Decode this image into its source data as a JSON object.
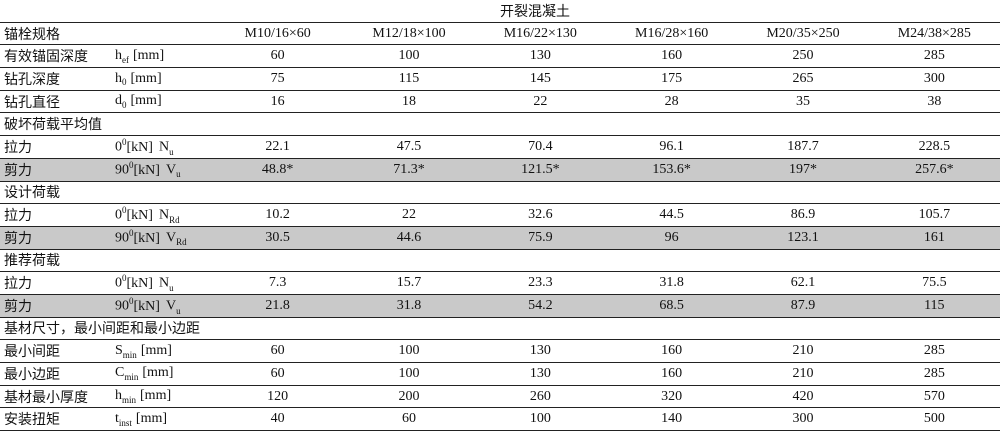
{
  "header": {
    "title": "开裂混凝土",
    "spec_label": "锚栓规格",
    "specs": [
      "M10/16×60",
      "M12/18×100",
      "M16/22×130",
      "M16/28×160",
      "M20/35×250",
      "M24/38×285"
    ]
  },
  "rows": [
    {
      "label": "有效锚固深度",
      "param": [
        {
          "text": "h"
        },
        {
          "sub": "ef"
        },
        {
          "text": "[mm]"
        }
      ],
      "values": [
        60,
        100,
        130,
        160,
        250,
        285
      ]
    },
    {
      "label": "钻孔深度",
      "param": [
        {
          "text": "h"
        },
        {
          "sub": "0"
        },
        {
          "text": "[mm]"
        }
      ],
      "values": [
        75,
        115,
        145,
        175,
        265,
        300
      ]
    },
    {
      "label": "钻孔直径",
      "param": [
        {
          "text": "d"
        },
        {
          "sub": "0"
        },
        {
          "text": "[mm]"
        }
      ],
      "values": [
        16,
        18,
        22,
        28,
        35,
        38
      ]
    },
    {
      "label": "破坏荷载平均值"
    },
    {
      "label": "拉力",
      "param": [
        {
          "text": "0"
        },
        {
          "sup": "0"
        },
        {
          "text": "[kN]"
        },
        {
          "text": "N"
        },
        {
          "sub": "u"
        }
      ],
      "values": [
        22.1,
        47.5,
        70.4,
        96.1,
        187.7,
        228.5
      ]
    },
    {
      "label": "剪力",
      "shaded": true,
      "param": [
        {
          "text": "90"
        },
        {
          "sup": "0"
        },
        {
          "text": "[kN]"
        },
        {
          "text": "V"
        },
        {
          "sub": "u"
        }
      ],
      "values": [
        "48.8*",
        "71.3*",
        "121.5*",
        "153.6*",
        "197*",
        "257.6*"
      ]
    },
    {
      "label": "设计荷载"
    },
    {
      "label": "拉力",
      "param": [
        {
          "text": "0"
        },
        {
          "sup": "0"
        },
        {
          "text": "[kN]"
        },
        {
          "text": "N"
        },
        {
          "sub": "Rd"
        }
      ],
      "values": [
        10.2,
        22,
        32.6,
        44.5,
        86.9,
        105.7
      ]
    },
    {
      "label": "剪力",
      "shaded": true,
      "param": [
        {
          "text": "90"
        },
        {
          "sup": "0"
        },
        {
          "text": "[kN]"
        },
        {
          "text": "V"
        },
        {
          "sub": "Rd"
        }
      ],
      "values": [
        30.5,
        44.6,
        75.9,
        96,
        123.1,
        161
      ]
    },
    {
      "label": "推荐荷载"
    },
    {
      "label": "拉力",
      "param": [
        {
          "text": "0"
        },
        {
          "sup": "0"
        },
        {
          "text": "[kN]"
        },
        {
          "text": "N"
        },
        {
          "sub": "u"
        }
      ],
      "values": [
        7.3,
        15.7,
        23.3,
        31.8,
        62.1,
        75.5
      ]
    },
    {
      "label": "剪力",
      "shaded": true,
      "param": [
        {
          "text": "90"
        },
        {
          "sup": "0"
        },
        {
          "text": "[kN]"
        },
        {
          "text": "V"
        },
        {
          "sub": "u"
        }
      ],
      "values": [
        21.8,
        31.8,
        54.2,
        68.5,
        87.9,
        115
      ]
    },
    {
      "label": "基材尺寸，最小间距和最小边距"
    },
    {
      "label": "最小间距",
      "param": [
        {
          "text": "S"
        },
        {
          "sub": "min"
        },
        {
          "text": "[mm]"
        }
      ],
      "values": [
        60,
        100,
        130,
        160,
        210,
        285
      ]
    },
    {
      "label": "最小边距",
      "param": [
        {
          "text": "C"
        },
        {
          "sub": "min"
        },
        {
          "text": "[mm]"
        }
      ],
      "values": [
        60,
        100,
        130,
        160,
        210,
        285
      ]
    },
    {
      "label": "基材最小厚度",
      "param": [
        {
          "text": "h"
        },
        {
          "sub": "min"
        },
        {
          "text": "[mm]"
        }
      ],
      "values": [
        120,
        200,
        260,
        320,
        420,
        570
      ]
    },
    {
      "label": "安装扭矩",
      "param": [
        {
          "text": "t"
        },
        {
          "sub": "inst"
        },
        {
          "text": "[mm]"
        }
      ],
      "values": [
        40,
        60,
        100,
        140,
        300,
        500
      ]
    }
  ]
}
